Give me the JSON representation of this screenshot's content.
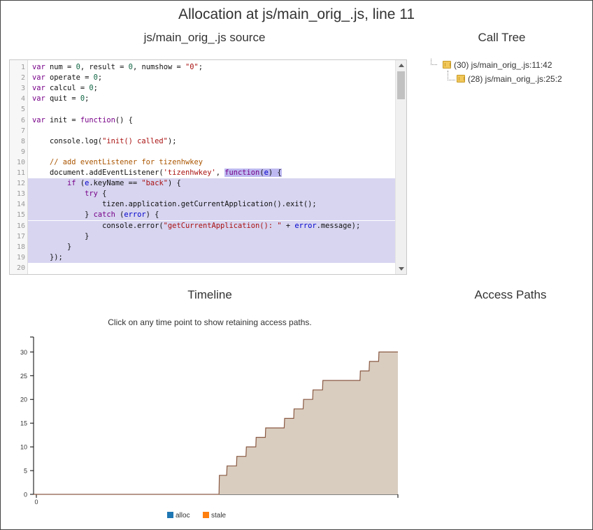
{
  "page_title": "Allocation at js/main_orig_.js, line 11",
  "source_panel": {
    "title": "js/main_orig_.js source",
    "lines": [
      {
        "n": "1",
        "html": "<span class='kw'>var</span> num = <span class='num'>0</span>, result = <span class='num'>0</span>, numshow = <span class='str'>\"0\"</span>;"
      },
      {
        "n": "2",
        "html": "<span class='kw'>var</span> operate = <span class='num'>0</span>;"
      },
      {
        "n": "3",
        "html": "<span class='kw'>var</span> calcul = <span class='num'>0</span>;"
      },
      {
        "n": "4",
        "html": "<span class='kw'>var</span> quit = <span class='num'>0</span>;"
      },
      {
        "n": "5",
        "html": ""
      },
      {
        "n": "6",
        "html": "<span class='kw'>var</span> init = <span class='kw'>function</span>() {"
      },
      {
        "n": "7",
        "html": ""
      },
      {
        "n": "8",
        "html": "    console.log(<span class='str'>\"init() called\"</span>);"
      },
      {
        "n": "9",
        "html": ""
      },
      {
        "n": "10",
        "html": "    <span class='cm'>// add eventListener for tizenhwkey</span>"
      },
      {
        "n": "11",
        "html": "    document.addEventListener(<span class='str'>'tizenhwkey'</span>, <span class='fnhl'><span class='kw'>function</span>(<span class='var'>e</span>) {</span>"
      },
      {
        "n": "12",
        "html": "        <span class='kw'>if</span> (<span class='var'>e</span>.keyName == <span class='str'>\"back\"</span>) {",
        "hl": true
      },
      {
        "n": "13",
        "html": "            <span class='kw'>try</span> {",
        "hl": true
      },
      {
        "n": "14",
        "html": "                tizen.application.getCurrentApplication().exit();",
        "hl": true
      },
      {
        "n": "15",
        "html": "            } <span class='kw'>catch</span> (<span class='var'>error</span>) {",
        "hl": true
      },
      {
        "n": "16",
        "html": "                console.error(<span class='str'>\"getCurrentApplication(): \"</span> + <span class='var'>error</span>.message);",
        "hl": true
      },
      {
        "n": "17",
        "html": "            }",
        "hl": true
      },
      {
        "n": "18",
        "html": "        }",
        "hl": true
      },
      {
        "n": "19",
        "html": "    });",
        "hl": false
      },
      {
        "n": "20",
        "html": ""
      }
    ]
  },
  "call_tree": {
    "title": "Call Tree",
    "nodes": [
      {
        "label": "(30) js/main_orig_.js:11:42"
      },
      {
        "label": "(28) js/main_orig_.js:25:2"
      }
    ]
  },
  "timeline": {
    "title": "Timeline",
    "hint": "Click on any time point to show retaining access paths."
  },
  "access_paths": {
    "title": "Access Paths"
  },
  "chart_data": {
    "type": "area",
    "x_tick_labels": [
      "0"
    ],
    "y_ticks": [
      0,
      5,
      10,
      15,
      20,
      25,
      30
    ],
    "ylim": [
      0,
      33
    ],
    "xlim": [
      0,
      100
    ],
    "series": [
      {
        "name": "alloc",
        "color": "#1f77b4",
        "x": [
          0,
          50.9,
          51.0,
          53.0,
          53.1,
          55.7,
          55.8,
          58.3,
          58.4,
          61.0,
          61.1,
          63.6,
          63.7,
          68.8,
          68.9,
          71.4,
          71.5,
          74.0,
          74.1,
          76.6,
          76.7,
          79.3,
          79.4,
          89.6,
          89.7,
          92.1,
          92.2,
          94.7,
          94.8,
          100
        ],
        "values": [
          0,
          0,
          4,
          4,
          6,
          6,
          8,
          8,
          10,
          10,
          12,
          12,
          14,
          14,
          16,
          16,
          18,
          18,
          20,
          20,
          22,
          22,
          24,
          24,
          26,
          26,
          28,
          28,
          30,
          30
        ]
      },
      {
        "name": "stale",
        "color": "#ff7f0e",
        "x": [],
        "values": []
      }
    ],
    "fill_color": "#d9cdbf",
    "line_color": "#8a5a44"
  }
}
